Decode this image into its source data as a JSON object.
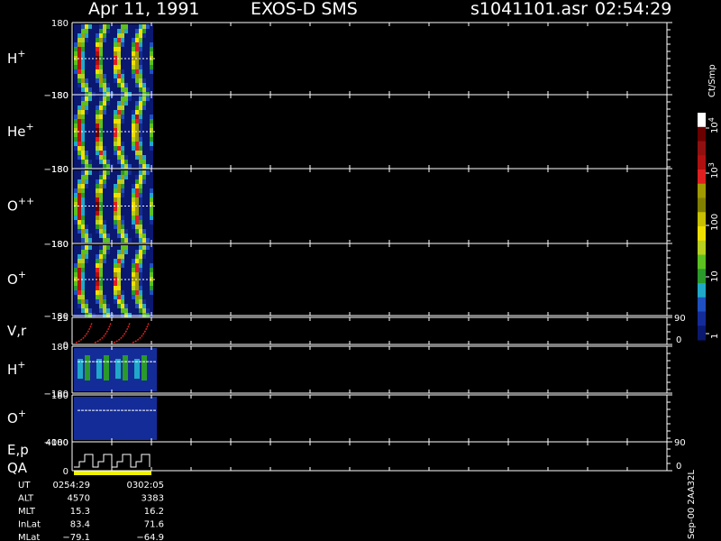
{
  "header": {
    "date": "Apr 11, 1991",
    "instrument": "EXOS-D SMS",
    "file": "s1041101.asr",
    "time": "02:54:29"
  },
  "panels": [
    {
      "ion": "H",
      "charge": "+",
      "ymax": "180",
      "ymin": "−180"
    },
    {
      "ion": "He",
      "charge": "+",
      "ymax": "180",
      "ymin": "−180"
    },
    {
      "ion": "O",
      "charge": "++",
      "ymax": "180",
      "ymin": "−180"
    },
    {
      "ion": "O",
      "charge": "+",
      "ymax": "180",
      "ymin": "−180"
    },
    {
      "ion": "V,r",
      "charge": "",
      "ymax": "25",
      "ymin": "0",
      "rmax": "90",
      "rmin": "0"
    },
    {
      "ion": "H",
      "charge": "+",
      "ymax": "180",
      "ymin": "−180"
    },
    {
      "ion": "O",
      "charge": "+",
      "ymax": "180",
      "ymin": "−180"
    },
    {
      "ion": "E,p",
      "charge": "QA",
      "ymax": "4000",
      "ymin": "0",
      "rmax": "90",
      "rmin": "0"
    }
  ],
  "colorbar": {
    "unit": "Ct/Smp",
    "labels": [
      {
        "base": "10",
        "exp": "4"
      },
      {
        "base": "10",
        "exp": "3"
      },
      {
        "base": "100",
        "exp": ""
      },
      {
        "base": "10",
        "exp": ""
      },
      {
        "base": "1",
        "exp": ""
      }
    ]
  },
  "footer": {
    "rows": [
      [
        "UT",
        "0254:29",
        "0302:05"
      ],
      [
        "ALT",
        "4570",
        "3383"
      ],
      [
        "MLT",
        "15.3",
        "16.2"
      ],
      [
        "InLat",
        "83.4",
        "71.6"
      ],
      [
        "MLat",
        "−79.1",
        "−64.9"
      ]
    ],
    "side": "Sep-00 2AA32L"
  }
}
